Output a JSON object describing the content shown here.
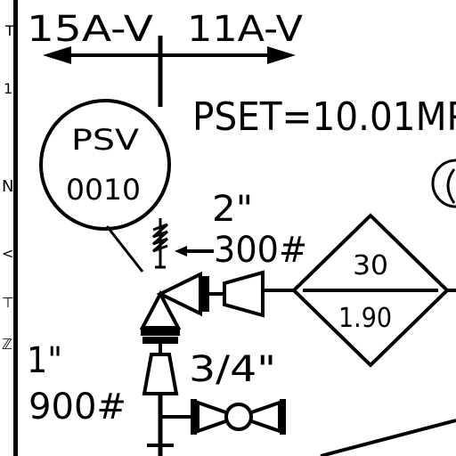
{
  "diagram": {
    "line_labels": {
      "left": "15A-V",
      "right": "11A-V"
    },
    "psv_tag": {
      "type": "PSV",
      "number": "0010"
    },
    "set_pressure": "PSET=10.01MP",
    "outlet_connection": {
      "size": "2\"",
      "rating": "300#"
    },
    "inlet_connection": {
      "size": "1\"",
      "rating": "900#"
    },
    "drain_size": "3/4\"",
    "diamond_tag": {
      "top": "30",
      "bottom": "1.90"
    },
    "left_margin_glyphs": [
      "T",
      "1",
      "N",
      "<",
      "⊤",
      "ℤ"
    ]
  }
}
